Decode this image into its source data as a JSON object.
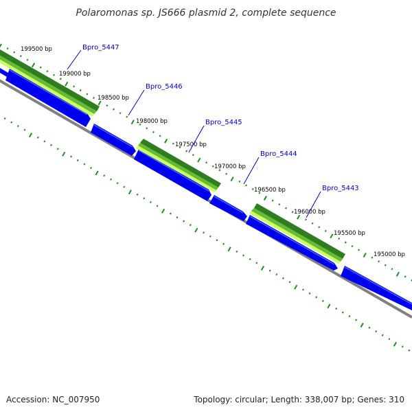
{
  "title": "Polaromonas sp. JS666 plasmid 2, complete sequence",
  "footer": {
    "accession": "Accession: NC_007950",
    "summary": "Topology: circular; Length: 338,007 bp; Genes: 310"
  },
  "bp_ticks": [
    {
      "label": "199500 bp"
    },
    {
      "label": "199000 bp"
    },
    {
      "label": "198500 bp"
    },
    {
      "label": "198000 bp"
    },
    {
      "label": "197500 bp"
    },
    {
      "label": "197000 bp"
    },
    {
      "label": "196500 bp"
    },
    {
      "label": "196000 bp"
    },
    {
      "label": "195500 bp"
    },
    {
      "label": "195000 bp"
    }
  ],
  "genes": [
    {
      "name": "Bpro_5447"
    },
    {
      "name": "Bpro_5446"
    },
    {
      "name": "Bpro_5445"
    },
    {
      "name": "Bpro_5444"
    },
    {
      "name": "Bpro_5443"
    }
  ],
  "colors": {
    "cds": "#0000ee",
    "cds_highlight": "#4466ff",
    "backbone": "#808080",
    "feature_dark": "#2e7d1f",
    "feature_mid": "#66bb33",
    "feature_light": "#ccff66",
    "tick": "#228b22",
    "gene_label": "#0000cc"
  }
}
